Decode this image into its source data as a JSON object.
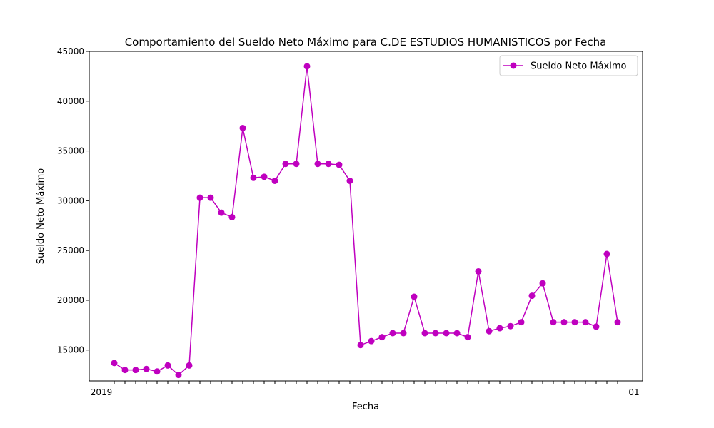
{
  "chart_data": {
    "type": "line",
    "title": "Comportamiento del Sueldo Neto Máximo para C.DE ESTUDIOS HUMANISTICOS por Fecha",
    "xlabel": "Fecha",
    "ylabel": "Sueldo Neto Máximo",
    "ylim": [
      11900,
      45000
    ],
    "yticks": [
      15000,
      20000,
      25000,
      30000,
      35000,
      40000,
      45000
    ],
    "x_tick_labels_note": "overlapping date labels; only '2019' at left and '01' at right are legible",
    "x_first_label": "2019",
    "x_last_label": "01",
    "legend": {
      "position": "top-right",
      "entries": [
        "Sueldo Neto Máximo"
      ]
    },
    "series": [
      {
        "name": "Sueldo Neto Máximo",
        "color": "#bf00bf",
        "marker": "circle",
        "values": [
          13700,
          13000,
          13000,
          13100,
          12850,
          13450,
          12500,
          13450,
          30300,
          30300,
          28800,
          28350,
          37300,
          32300,
          32400,
          32000,
          33700,
          33700,
          43500,
          33700,
          33700,
          33600,
          32000,
          15500,
          15900,
          16300,
          16700,
          16700,
          20350,
          16700,
          16700,
          16700,
          16700,
          16300,
          22900,
          16900,
          17200,
          17400,
          17800,
          20450,
          21700,
          17800,
          17800,
          17800,
          17800,
          17350,
          24650,
          17800
        ]
      }
    ]
  }
}
